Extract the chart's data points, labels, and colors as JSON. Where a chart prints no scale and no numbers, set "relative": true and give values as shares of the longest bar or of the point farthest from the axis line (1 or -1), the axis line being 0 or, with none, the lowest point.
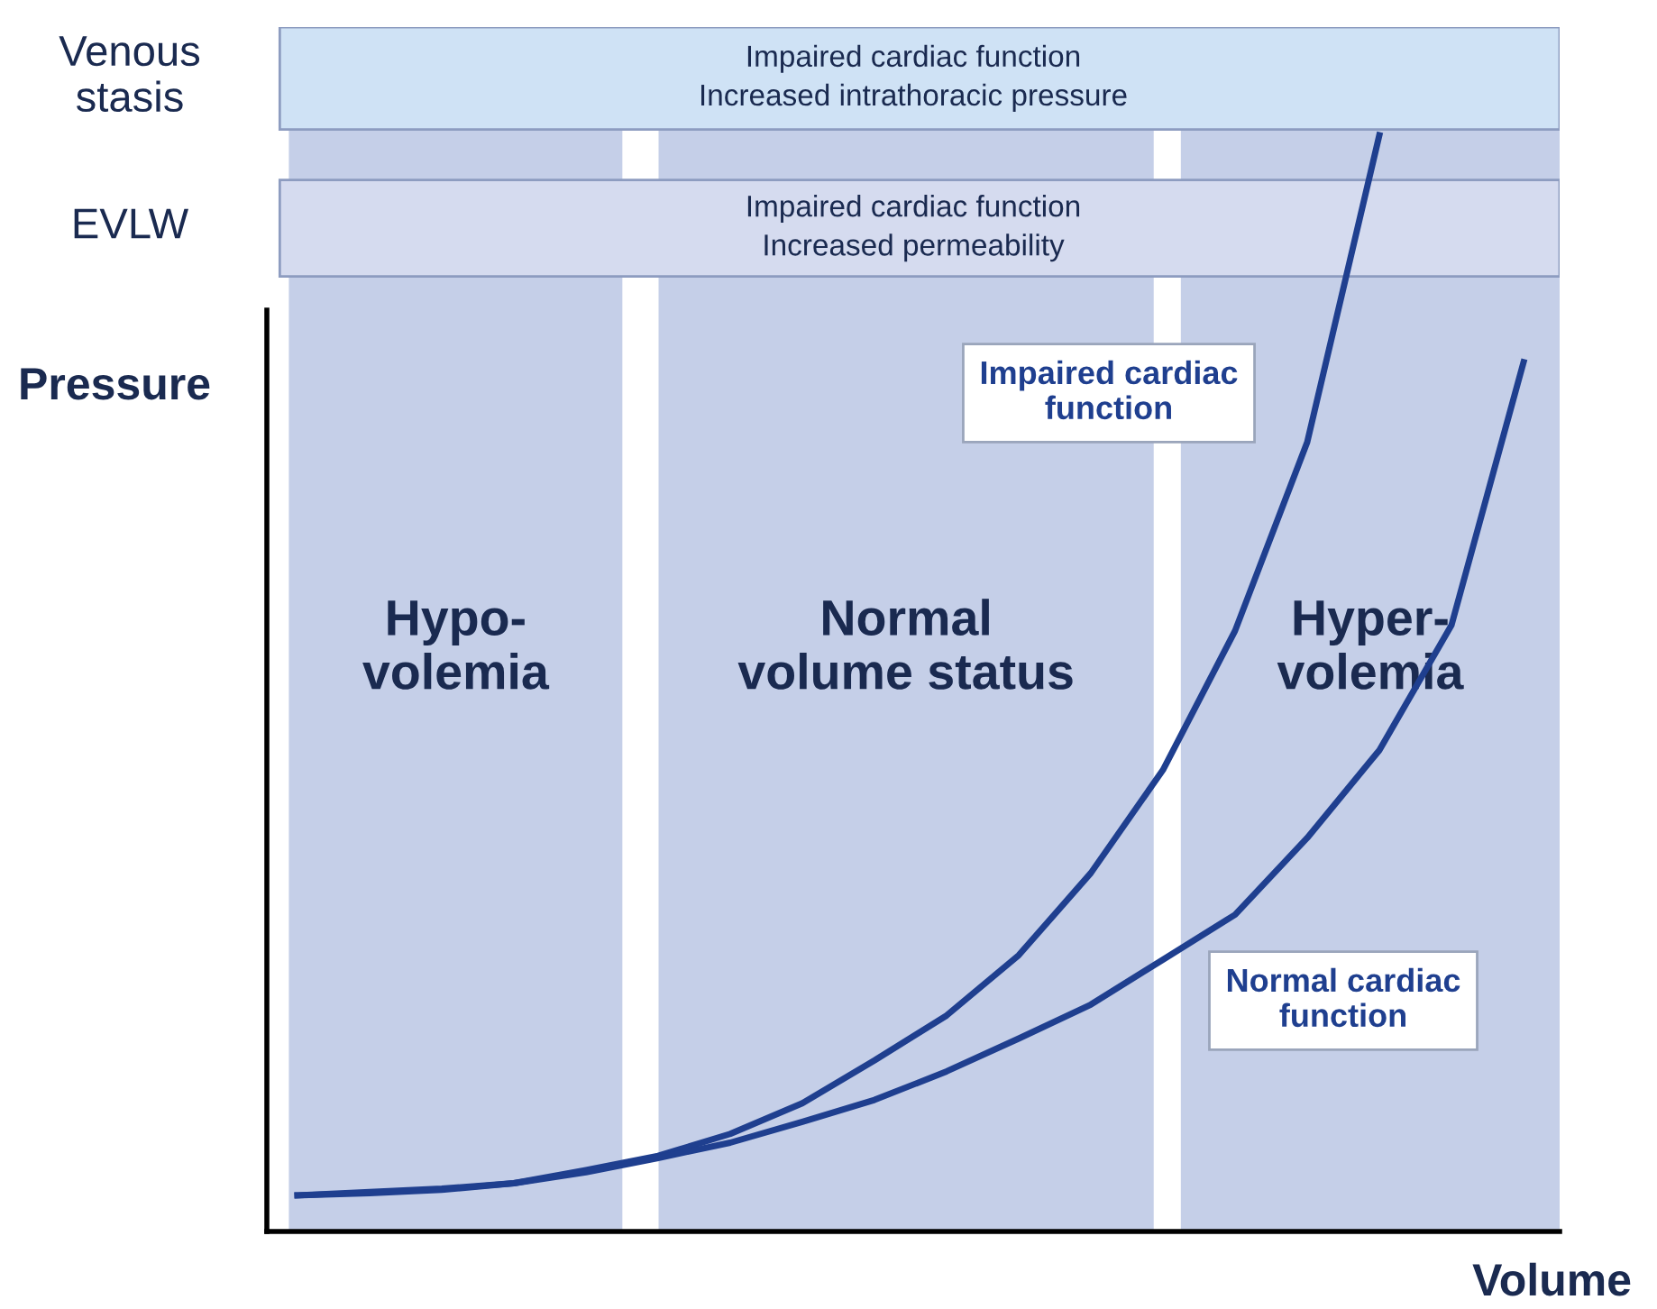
{
  "chart_data": {
    "type": "line",
    "relative": true,
    "xlabel": "Volume",
    "ylabel": "Pressure",
    "annotations": [
      "Venous stasis",
      "Impaired cardiac function\nIncreased intrathoracic pressure",
      "EVLW",
      "Impaired cardiac function\nIncreased permeability",
      "Hypo-\nvolemia",
      "Normal\nvolume status",
      "Hyper-\nvolemia"
    ],
    "categories": [
      null,
      null,
      null,
      null,
      null,
      null,
      null,
      null,
      null,
      null,
      null,
      null,
      null,
      null,
      null,
      null,
      null,
      null
    ],
    "series": [
      {
        "name": "Impaired cardiac function",
        "color": "#1f3f8f",
        "values": [
          0.033,
          0.035,
          0.038,
          0.044,
          0.056,
          0.069,
          0.089,
          0.117,
          0.156,
          0.197,
          0.252,
          0.327,
          0.421,
          0.548,
          0.72,
          1.0,
          null,
          null
        ]
      },
      {
        "name": "Normal cardiac function",
        "color": "#1f3f8f",
        "values": [
          0.033,
          0.036,
          0.039,
          0.044,
          0.054,
          0.067,
          0.081,
          0.1,
          0.12,
          0.146,
          0.176,
          0.207,
          0.248,
          0.289,
          0.359,
          0.439,
          0.553,
          0.793
        ]
      }
    ]
  }
}
